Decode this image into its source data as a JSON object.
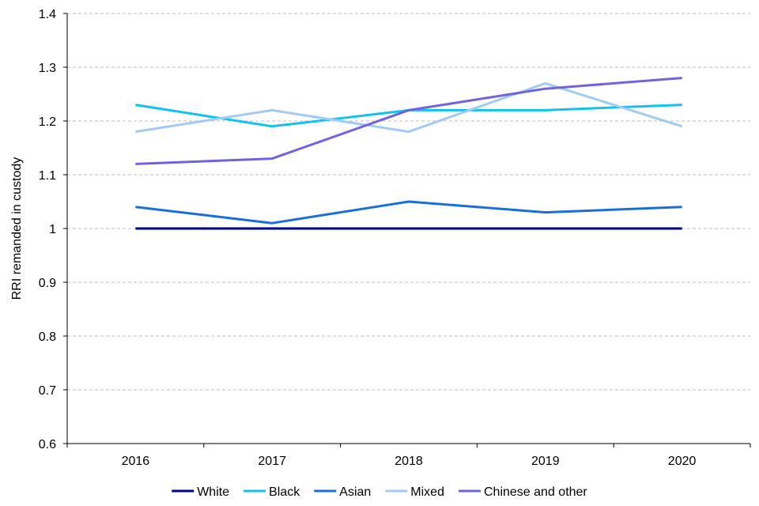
{
  "chart_data": {
    "type": "line",
    "title": "",
    "xlabel": "",
    "ylabel": "RRI remanded in custody",
    "categories": [
      "2016",
      "2017",
      "2018",
      "2019",
      "2020"
    ],
    "ylim": [
      0.6,
      1.4
    ],
    "yticks": [
      0.6,
      0.7,
      0.8,
      0.9,
      1,
      1.1,
      1.2,
      1.3,
      1.4
    ],
    "ytick_labels": [
      "0.6",
      "0.7",
      "0.8",
      "0.9",
      "1",
      "1.1",
      "1.2",
      "1.3",
      "1.4"
    ],
    "grid": true,
    "legend_position": "bottom",
    "series": [
      {
        "name": "White",
        "color": "#00008B",
        "values": [
          1.0,
          1.0,
          1.0,
          1.0,
          1.0
        ]
      },
      {
        "name": "Black",
        "color": "#12C2EB",
        "values": [
          1.23,
          1.19,
          1.22,
          1.22,
          1.23
        ]
      },
      {
        "name": "Asian",
        "color": "#1A6EDB",
        "values": [
          1.04,
          1.01,
          1.05,
          1.03,
          1.04
        ]
      },
      {
        "name": "Mixed",
        "color": "#A3CBF2",
        "values": [
          1.18,
          1.22,
          1.18,
          1.27,
          1.19
        ]
      },
      {
        "name": "Chinese and other",
        "color": "#7163E0",
        "values": [
          1.12,
          1.13,
          1.22,
          1.26,
          1.28
        ]
      }
    ]
  }
}
